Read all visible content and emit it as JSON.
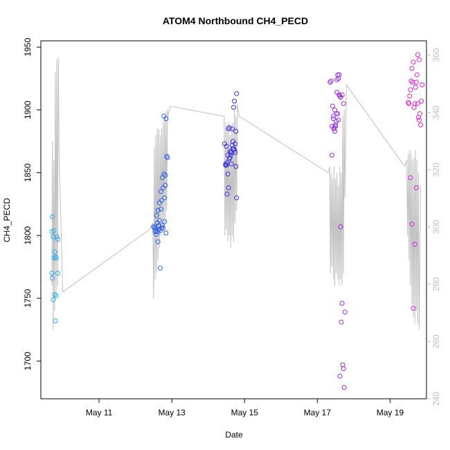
{
  "chart_data": {
    "type": "scatter",
    "title": "ATOM4 Northbound CH4_PECD",
    "xlabel": "Date",
    "ylabel": "CH4_PECD",
    "x_unit": "days (May, day of month)",
    "xlim": [
      9.4,
      20.0
    ],
    "ylim": [
      1670,
      1955
    ],
    "x_ticks": [
      {
        "value": 11,
        "label": "May 11"
      },
      {
        "value": 13,
        "label": "May 13"
      },
      {
        "value": 15,
        "label": "May 15"
      },
      {
        "value": 17,
        "label": "May 17"
      },
      {
        "value": 19,
        "label": "May 19"
      }
    ],
    "y_ticks": [
      1700,
      1750,
      1800,
      1850,
      1900,
      1950
    ],
    "y2_ticks": [
      240,
      260,
      280,
      300,
      320,
      340,
      360
    ],
    "y2lim": [
      240,
      365
    ],
    "grid": false,
    "colors": {
      "line": "#c0c0c0",
      "right_axis": "#bfbfbf",
      "flight1": "#29a8f0",
      "flight2": "#2a5ee8",
      "flight3": "#3a30e0",
      "flight4": "#9a2ad8",
      "flight5": "#d820d0"
    },
    "series": [
      {
        "color": "#29a8f0",
        "x": [
          9.7,
          9.72,
          9.74,
          9.76,
          9.7,
          9.72,
          9.78,
          9.8,
          9.82,
          9.74,
          9.78,
          9.84,
          9.86,
          9.86,
          9.82,
          9.8,
          9.76
        ],
        "y": [
          1803,
          1815,
          1799,
          1804,
          1770,
          1766,
          1787,
          1783,
          1782,
          1749,
          1753,
          1799,
          1797,
          1770,
          1752,
          1732,
          1782
        ]
      },
      {
        "color": "#2a5ee8",
        "x": [
          12.5,
          12.52,
          12.54,
          12.56,
          12.58,
          12.6,
          12.62,
          12.64,
          12.66,
          12.68,
          12.7,
          12.72,
          12.74,
          12.76,
          12.78,
          12.8,
          12.82,
          12.84,
          12.86,
          12.88,
          12.56,
          12.6,
          12.64,
          12.68,
          12.72,
          12.76,
          12.8,
          12.84,
          12.58,
          12.62,
          12.66,
          12.7,
          12.74,
          12.78,
          12.82
        ],
        "y": [
          1807,
          1806,
          1803,
          1804,
          1816,
          1810,
          1795,
          1805,
          1812,
          1774,
          1821,
          1828,
          1808,
          1838,
          1849,
          1830,
          1840,
          1893,
          1863,
          1862,
          1806,
          1803,
          1808,
          1804,
          1806,
          1806,
          1811,
          1802,
          1801,
          1820,
          1826,
          1835,
          1846,
          1895,
          1848
        ]
      },
      {
        "color": "#3a30e0",
        "x": [
          14.45,
          14.48,
          14.5,
          14.52,
          14.54,
          14.56,
          14.58,
          14.6,
          14.62,
          14.64,
          14.66,
          14.68,
          14.7,
          14.72,
          14.74,
          14.76,
          14.78,
          14.5,
          14.54,
          14.58,
          14.62,
          14.66,
          14.7,
          14.74,
          14.52,
          14.56,
          14.6,
          14.64,
          14.68,
          14.72,
          14.76,
          14.48,
          14.78
        ],
        "y": [
          1873,
          1857,
          1856,
          1833,
          1849,
          1838,
          1886,
          1867,
          1864,
          1857,
          1885,
          1875,
          1902,
          1907,
          1866,
          1855,
          1913,
          1871,
          1864,
          1861,
          1866,
          1872,
          1869,
          1873,
          1858,
          1885,
          1862,
          1866,
          1869,
          1868,
          1883,
          1856,
          1830
        ]
      },
      {
        "color": "#9a2ad8",
        "x": [
          17.35,
          17.38,
          17.4,
          17.42,
          17.44,
          17.46,
          17.48,
          17.5,
          17.52,
          17.54,
          17.56,
          17.58,
          17.6,
          17.62,
          17.64,
          17.66,
          17.68,
          17.7,
          17.72,
          17.74,
          17.76,
          17.4,
          17.44,
          17.48,
          17.52,
          17.56,
          17.6,
          17.64,
          17.68,
          17.72,
          17.46,
          17.5,
          17.54,
          17.58,
          17.62
        ],
        "y": [
          1922,
          1923,
          1864,
          1903,
          1895,
          1885,
          1900,
          1888,
          1897,
          1914,
          1928,
          1925,
          1912,
          1911,
          1807,
          1731,
          1746,
          1697,
          1694,
          1679,
          1739,
          1887,
          1893,
          1883,
          1891,
          1897,
          1928,
          1910,
          1912,
          1905,
          1886,
          1887,
          1924,
          1892,
          1688
        ]
      },
      {
        "color": "#d820d0",
        "x": [
          19.5,
          19.52,
          19.54,
          19.56,
          19.58,
          19.6,
          19.62,
          19.64,
          19.66,
          19.68,
          19.7,
          19.72,
          19.74,
          19.76,
          19.78,
          19.8,
          19.82,
          19.84,
          19.86,
          19.88,
          19.56,
          19.6,
          19.64,
          19.68,
          19.72,
          19.76,
          19.8
        ],
        "y": [
          1906,
          1905,
          1911,
          1916,
          1923,
          1933,
          1922,
          1938,
          1902,
          1905,
          1918,
          1922,
          1928,
          1944,
          1894,
          1892,
          1897,
          1888,
          1907,
          1920,
          1846,
          1809,
          1742,
          1793,
          1838,
          1905,
          1940
        ]
      }
    ],
    "line_series": {
      "color": "#c0c0c0",
      "x": [
        9.7,
        9.72,
        9.74,
        9.76,
        9.78,
        9.8,
        9.82,
        9.84,
        9.86,
        9.88,
        9.9,
        10.0,
        12.4,
        12.48,
        12.5,
        12.52,
        12.54,
        12.56,
        12.58,
        12.6,
        12.62,
        12.64,
        12.66,
        12.68,
        12.7,
        12.72,
        12.74,
        12.76,
        12.78,
        12.8,
        12.82,
        12.84,
        12.86,
        12.88,
        12.9,
        12.95,
        14.4,
        14.44,
        14.46,
        14.48,
        14.5,
        14.52,
        14.54,
        14.56,
        14.58,
        14.6,
        14.62,
        14.64,
        14.66,
        14.68,
        14.7,
        14.72,
        14.74,
        14.76,
        14.78,
        14.8,
        14.85,
        17.3,
        17.34,
        17.36,
        17.38,
        17.4,
        17.42,
        17.44,
        17.46,
        17.48,
        17.5,
        17.52,
        17.54,
        17.56,
        17.58,
        17.6,
        17.62,
        17.64,
        17.66,
        17.68,
        17.7,
        17.72,
        17.74,
        17.76,
        17.8,
        19.4,
        19.46,
        19.48,
        19.5,
        19.52,
        19.54,
        19.56,
        19.58,
        19.6,
        19.62,
        19.64,
        19.66,
        19.68,
        19.7,
        19.72,
        19.74,
        19.76,
        19.78,
        19.8,
        19.84
      ],
      "y": [
        1760,
        1875,
        1725,
        1860,
        1740,
        1930,
        1755,
        1940,
        1760,
        1942,
        1870,
        1755,
        1805,
        1810,
        1750,
        1870,
        1765,
        1880,
        1770,
        1885,
        1780,
        1885,
        1790,
        1880,
        1800,
        1885,
        1805,
        1890,
        1800,
        1895,
        1810,
        1898,
        1820,
        1900,
        1895,
        1903,
        1895,
        1895,
        1800,
        1890,
        1805,
        1885,
        1795,
        1890,
        1800,
        1880,
        1790,
        1885,
        1800,
        1890,
        1795,
        1900,
        1810,
        1895,
        1820,
        1905,
        1895,
        1850,
        1855,
        1770,
        1850,
        1775,
        1845,
        1765,
        1855,
        1760,
        1845,
        1770,
        1850,
        1765,
        1840,
        1760,
        1855,
        1765,
        1850,
        1760,
        1895,
        1770,
        1900,
        1830,
        1920,
        1855,
        1860,
        1800,
        1865,
        1780,
        1868,
        1760,
        1865,
        1745,
        1860,
        1735,
        1862,
        1730,
        1868,
        1740,
        1860,
        1730,
        1850,
        1725,
        1840
      ]
    }
  }
}
